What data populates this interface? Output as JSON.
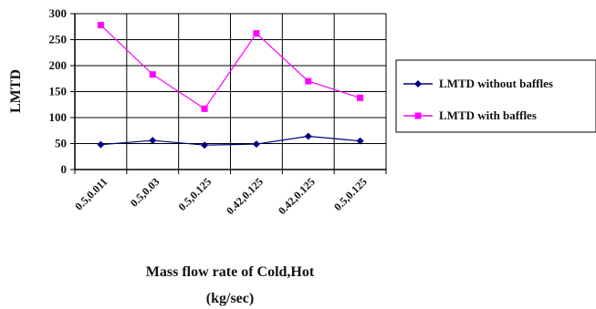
{
  "chart_data": {
    "type": "line",
    "categories": [
      "0.5,0.011",
      "0.5,0.03",
      "0.5,0.125",
      "0.42,0.125",
      "0.42,0.125",
      "0.5,0.125"
    ],
    "series": [
      {
        "name": "LMTD without baffles",
        "values": [
          48,
          56,
          47,
          49,
          64,
          55
        ],
        "color": "#000080",
        "marker": "diamond"
      },
      {
        "name": "LMTD with baffles",
        "values": [
          278,
          183,
          117,
          262,
          170,
          138
        ],
        "color": "#ff00ff",
        "marker": "square"
      }
    ],
    "title": "",
    "xlabel_line1": "Mass flow rate of Cold,Hot",
    "xlabel_line2": "(kg/sec)",
    "ylabel": "LMTD",
    "ylim": [
      0,
      300
    ],
    "yticks": [
      0,
      50,
      100,
      150,
      200,
      250,
      300
    ],
    "grid": true,
    "legend_position": "right"
  }
}
